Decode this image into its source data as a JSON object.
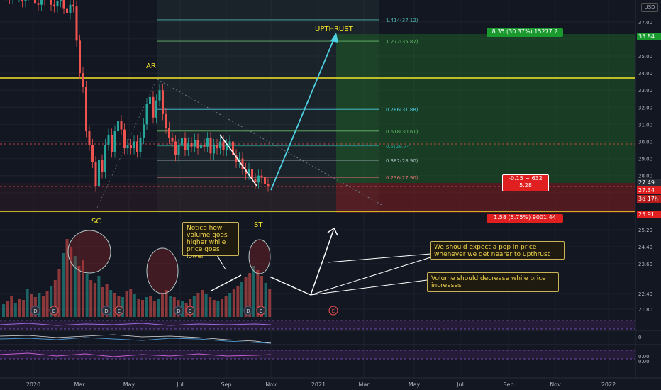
{
  "currency_badge": "USD",
  "y_axis_ticks": [
    {
      "v": 37.0,
      "label": "37.00"
    },
    {
      "v": 36.0,
      "label": ""
    },
    {
      "v": 35.0,
      "label": "35.00"
    },
    {
      "v": 34.0,
      "label": "34.00"
    },
    {
      "v": 33.0,
      "label": "33.00"
    },
    {
      "v": 32.0,
      "label": "32.00"
    },
    {
      "v": 31.0,
      "label": "31.00"
    },
    {
      "v": 30.0,
      "label": "30.00"
    },
    {
      "v": 29.0,
      "label": "29.00"
    },
    {
      "v": 28.0,
      "label": "28.00"
    },
    {
      "v": 27.0,
      "label": ""
    },
    {
      "v": 26.0,
      "label": ""
    },
    {
      "v": 25.2,
      "label": "25.20"
    },
    {
      "v": 24.4,
      "label": "24.40"
    },
    {
      "v": 23.6,
      "label": "23.60"
    },
    {
      "v": 22.4,
      "label": "22.40"
    },
    {
      "v": 21.8,
      "label": "21.80"
    }
  ],
  "indicator_ticks": [
    "0",
    "0.00",
    "0.00"
  ],
  "x_axis_ticks": [
    "2020",
    "Mar",
    "May",
    "Jul",
    "Sep",
    "Nov",
    "2021",
    "Mar",
    "May",
    "Jul",
    "Sep",
    "Nov",
    "2022"
  ],
  "price_tags": {
    "target": "35.84",
    "last": "27.49",
    "current": "27.34",
    "countdown": "3d 17h",
    "stop": "25.91"
  },
  "fib_levels": [
    {
      "ratio": "1.414",
      "price": "37.12",
      "label": "1.414(37.12)"
    },
    {
      "ratio": "1.272",
      "price": "35.87",
      "label": "1.272(35.87)"
    },
    {
      "ratio": "0.786",
      "price": "31.88",
      "label": "0.786(31.88)"
    },
    {
      "ratio": "0.618",
      "price": "30.61",
      "label": "0.618(30.61)"
    },
    {
      "ratio": "0.5",
      "price": "29.74",
      "label": "0.5(29.74)"
    },
    {
      "ratio": "0.382",
      "price": "28.90",
      "label": "0.382(28.90)"
    },
    {
      "ratio": "0.236",
      "price": "27.90",
      "label": "0.236(27.90)"
    }
  ],
  "position_tool": {
    "profit_label": "8.35 (30.37%) 15277.2",
    "loss_label": "1.58 (5.75%) 9001.44",
    "entry_line1": "-0.15 ~ 632",
    "entry_line2": "5.28"
  },
  "wyckoff_labels": {
    "ar": "AR",
    "sc": "SC",
    "st": "ST",
    "upthrust": "UPTHRUST"
  },
  "notes": {
    "volume_note": "Notice how volume goes higher while price goes lower",
    "pop_note": "We should expect a pop in price whenever we get nearer to upthrust",
    "decrease_note": "Volume should decrease while price increases"
  },
  "event_markers": [
    "D",
    "E",
    "D",
    "E",
    "D",
    "E",
    "D",
    "E",
    "E"
  ],
  "colors": {
    "bull": "#26a69a",
    "bear": "#ef5350",
    "yellow": "#f5e52a",
    "cyan": "#4dd0e1",
    "bg": "#131722"
  }
}
